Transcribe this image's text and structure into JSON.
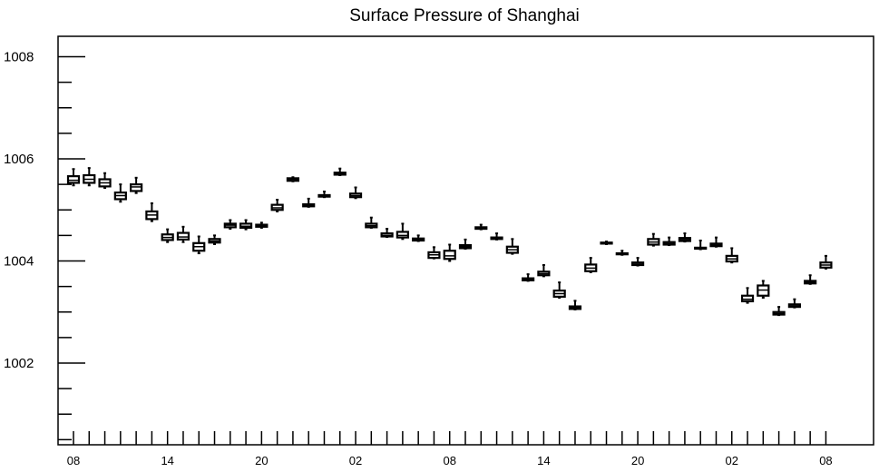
{
  "chart_data": {
    "type": "box",
    "title": "Surface Pressure of Shanghai",
    "xlabel": "",
    "ylabel": "",
    "ylim": [
      1000.4,
      1008.4
    ],
    "yticks": [
      1002,
      1004,
      1006,
      1008
    ],
    "ytick_labels": [
      "1002",
      "1004",
      "1006",
      "1008"
    ],
    "xtick_labels": [
      "08",
      "14",
      "20",
      "02",
      "08",
      "14",
      "20",
      "02",
      "08"
    ],
    "xtick_label_indices": [
      0,
      6,
      12,
      18,
      24,
      30,
      36,
      42,
      48
    ],
    "grid": false,
    "boxes": [
      {
        "x": 0,
        "whislo": 1005.48,
        "q1": 1005.53,
        "med": 1005.58,
        "q3": 1005.66,
        "whishi": 1005.8
      },
      {
        "x": 1,
        "whislo": 1005.48,
        "q1": 1005.53,
        "med": 1005.6,
        "q3": 1005.68,
        "whishi": 1005.82
      },
      {
        "x": 2,
        "whislo": 1005.43,
        "q1": 1005.46,
        "med": 1005.53,
        "q3": 1005.6,
        "whishi": 1005.72
      },
      {
        "x": 3,
        "whislo": 1005.16,
        "q1": 1005.21,
        "med": 1005.28,
        "q3": 1005.34,
        "whishi": 1005.5
      },
      {
        "x": 4,
        "whislo": 1005.33,
        "q1": 1005.37,
        "med": 1005.45,
        "q3": 1005.5,
        "whishi": 1005.63
      },
      {
        "x": 5,
        "whislo": 1004.78,
        "q1": 1004.82,
        "med": 1004.9,
        "q3": 1004.97,
        "whishi": 1005.13
      },
      {
        "x": 6,
        "whislo": 1004.37,
        "q1": 1004.41,
        "med": 1004.46,
        "q3": 1004.52,
        "whishi": 1004.62
      },
      {
        "x": 7,
        "whislo": 1004.37,
        "q1": 1004.42,
        "med": 1004.47,
        "q3": 1004.55,
        "whishi": 1004.67
      },
      {
        "x": 8,
        "whislo": 1004.15,
        "q1": 1004.2,
        "med": 1004.28,
        "q3": 1004.35,
        "whishi": 1004.48
      },
      {
        "x": 9,
        "whislo": 1004.33,
        "q1": 1004.36,
        "med": 1004.39,
        "q3": 1004.43,
        "whishi": 1004.5
      },
      {
        "x": 10,
        "whislo": 1004.63,
        "q1": 1004.66,
        "med": 1004.7,
        "q3": 1004.73,
        "whishi": 1004.8
      },
      {
        "x": 11,
        "whislo": 1004.62,
        "q1": 1004.65,
        "med": 1004.68,
        "q3": 1004.73,
        "whishi": 1004.8
      },
      {
        "x": 12,
        "whislo": 1004.65,
        "q1": 1004.67,
        "med": 1004.69,
        "q3": 1004.71,
        "whishi": 1004.75
      },
      {
        "x": 13,
        "whislo": 1004.97,
        "q1": 1005.0,
        "med": 1005.04,
        "q3": 1005.1,
        "whishi": 1005.2
      },
      {
        "x": 14,
        "whislo": 1005.56,
        "q1": 1005.57,
        "med": 1005.6,
        "q3": 1005.62,
        "whishi": 1005.64
      },
      {
        "x": 15,
        "whislo": 1005.06,
        "q1": 1005.07,
        "med": 1005.09,
        "q3": 1005.11,
        "whishi": 1005.22
      },
      {
        "x": 16,
        "whislo": 1005.25,
        "q1": 1005.26,
        "med": 1005.27,
        "q3": 1005.29,
        "whishi": 1005.36
      },
      {
        "x": 17,
        "whislo": 1005.68,
        "q1": 1005.69,
        "med": 1005.71,
        "q3": 1005.73,
        "whishi": 1005.81
      },
      {
        "x": 18,
        "whislo": 1005.23,
        "q1": 1005.25,
        "med": 1005.28,
        "q3": 1005.32,
        "whishi": 1005.44
      },
      {
        "x": 19,
        "whislo": 1004.65,
        "q1": 1004.66,
        "med": 1004.69,
        "q3": 1004.73,
        "whishi": 1004.85
      },
      {
        "x": 20,
        "whislo": 1004.47,
        "q1": 1004.48,
        "med": 1004.5,
        "q3": 1004.54,
        "whishi": 1004.63
      },
      {
        "x": 21,
        "whislo": 1004.43,
        "q1": 1004.46,
        "med": 1004.5,
        "q3": 1004.57,
        "whishi": 1004.73
      },
      {
        "x": 22,
        "whislo": 1004.39,
        "q1": 1004.4,
        "med": 1004.42,
        "q3": 1004.44,
        "whishi": 1004.5
      },
      {
        "x": 23,
        "whislo": 1004.05,
        "q1": 1004.06,
        "med": 1004.12,
        "q3": 1004.17,
        "whishi": 1004.27
      },
      {
        "x": 24,
        "whislo": 1004.0,
        "q1": 1004.04,
        "med": 1004.1,
        "q3": 1004.2,
        "whishi": 1004.32
      },
      {
        "x": 25,
        "whislo": 1004.24,
        "q1": 1004.25,
        "med": 1004.28,
        "q3": 1004.31,
        "whishi": 1004.42
      },
      {
        "x": 26,
        "whislo": 1004.62,
        "q1": 1004.63,
        "med": 1004.64,
        "q3": 1004.66,
        "whishi": 1004.71
      },
      {
        "x": 27,
        "whislo": 1004.42,
        "q1": 1004.43,
        "med": 1004.44,
        "q3": 1004.46,
        "whishi": 1004.54
      },
      {
        "x": 28,
        "whislo": 1004.14,
        "q1": 1004.16,
        "med": 1004.22,
        "q3": 1004.28,
        "whishi": 1004.43
      },
      {
        "x": 29,
        "whislo": 1003.61,
        "q1": 1003.62,
        "med": 1003.64,
        "q3": 1003.66,
        "whishi": 1003.74
      },
      {
        "x": 30,
        "whislo": 1003.7,
        "q1": 1003.72,
        "med": 1003.75,
        "q3": 1003.79,
        "whishi": 1003.92
      },
      {
        "x": 31,
        "whislo": 1003.28,
        "q1": 1003.3,
        "med": 1003.36,
        "q3": 1003.42,
        "whishi": 1003.58
      },
      {
        "x": 32,
        "whislo": 1003.05,
        "q1": 1003.06,
        "med": 1003.08,
        "q3": 1003.11,
        "whishi": 1003.22
      },
      {
        "x": 33,
        "whislo": 1003.78,
        "q1": 1003.8,
        "med": 1003.86,
        "q3": 1003.93,
        "whishi": 1004.06
      },
      {
        "x": 34,
        "whislo": 1004.33,
        "q1": 1004.34,
        "med": 1004.35,
        "q3": 1004.36,
        "whishi": 1004.38
      },
      {
        "x": 35,
        "whislo": 1004.12,
        "q1": 1004.13,
        "med": 1004.14,
        "q3": 1004.15,
        "whishi": 1004.2
      },
      {
        "x": 36,
        "whislo": 1003.91,
        "q1": 1003.92,
        "med": 1003.94,
        "q3": 1003.97,
        "whishi": 1004.06
      },
      {
        "x": 37,
        "whislo": 1004.3,
        "q1": 1004.32,
        "med": 1004.37,
        "q3": 1004.43,
        "whishi": 1004.53
      },
      {
        "x": 38,
        "whislo": 1004.31,
        "q1": 1004.32,
        "med": 1004.34,
        "q3": 1004.37,
        "whishi": 1004.46
      },
      {
        "x": 39,
        "whislo": 1004.38,
        "q1": 1004.39,
        "med": 1004.42,
        "q3": 1004.45,
        "whishi": 1004.54
      },
      {
        "x": 40,
        "whislo": 1004.23,
        "q1": 1004.24,
        "med": 1004.25,
        "q3": 1004.26,
        "whishi": 1004.4
      },
      {
        "x": 41,
        "whislo": 1004.28,
        "q1": 1004.29,
        "med": 1004.31,
        "q3": 1004.34,
        "whishi": 1004.46
      },
      {
        "x": 42,
        "whislo": 1003.97,
        "q1": 1003.99,
        "med": 1004.04,
        "q3": 1004.1,
        "whishi": 1004.25
      },
      {
        "x": 43,
        "whislo": 1003.18,
        "q1": 1003.21,
        "med": 1003.25,
        "q3": 1003.32,
        "whishi": 1003.47
      },
      {
        "x": 44,
        "whislo": 1003.28,
        "q1": 1003.32,
        "med": 1003.43,
        "q3": 1003.52,
        "whishi": 1003.61
      },
      {
        "x": 45,
        "whislo": 1002.94,
        "q1": 1002.95,
        "med": 1002.97,
        "q3": 1003.0,
        "whishi": 1003.1
      },
      {
        "x": 46,
        "whislo": 1003.09,
        "q1": 1003.1,
        "med": 1003.12,
        "q3": 1003.15,
        "whishi": 1003.25
      },
      {
        "x": 47,
        "whislo": 1003.55,
        "q1": 1003.56,
        "med": 1003.58,
        "q3": 1003.61,
        "whishi": 1003.72
      },
      {
        "x": 48,
        "whislo": 1003.85,
        "q1": 1003.87,
        "med": 1003.92,
        "q3": 1003.97,
        "whishi": 1004.1
      }
    ]
  }
}
